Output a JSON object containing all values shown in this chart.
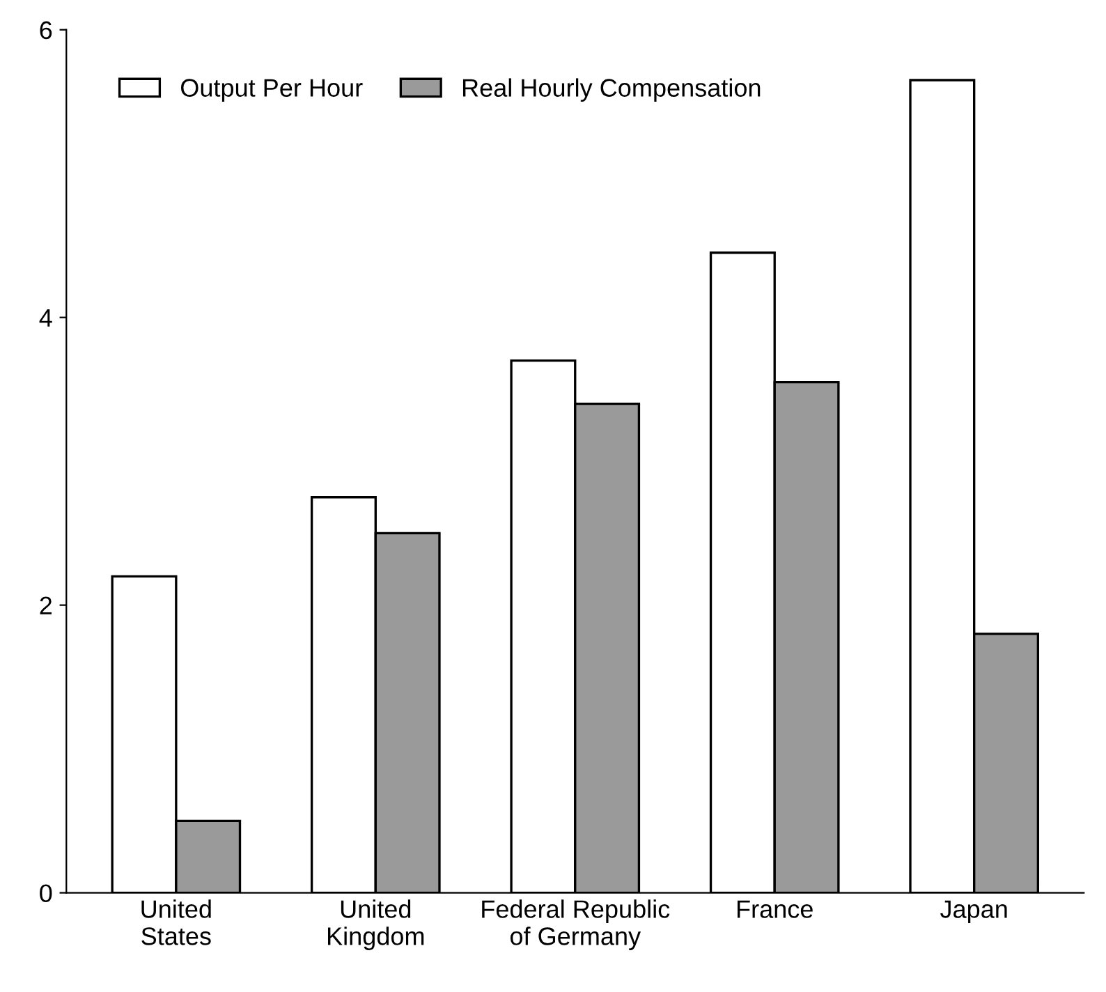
{
  "chart_data": {
    "type": "bar",
    "categories": [
      "United\nStates",
      "United\nKingdom",
      "Federal Republic\nof Germany",
      "France",
      "Japan"
    ],
    "series": [
      {
        "name": "Output Per Hour",
        "color": "#ffffff",
        "values": [
          2.2,
          2.75,
          3.7,
          4.45,
          5.65
        ]
      },
      {
        "name": "Real Hourly Compensation",
        "color": "#9a9a9a",
        "values": [
          0.5,
          2.5,
          3.4,
          3.55,
          1.8
        ]
      }
    ],
    "ylim": [
      0,
      6
    ],
    "yticks": [
      0,
      2,
      4,
      6
    ],
    "grid": false,
    "legend": "top left"
  }
}
